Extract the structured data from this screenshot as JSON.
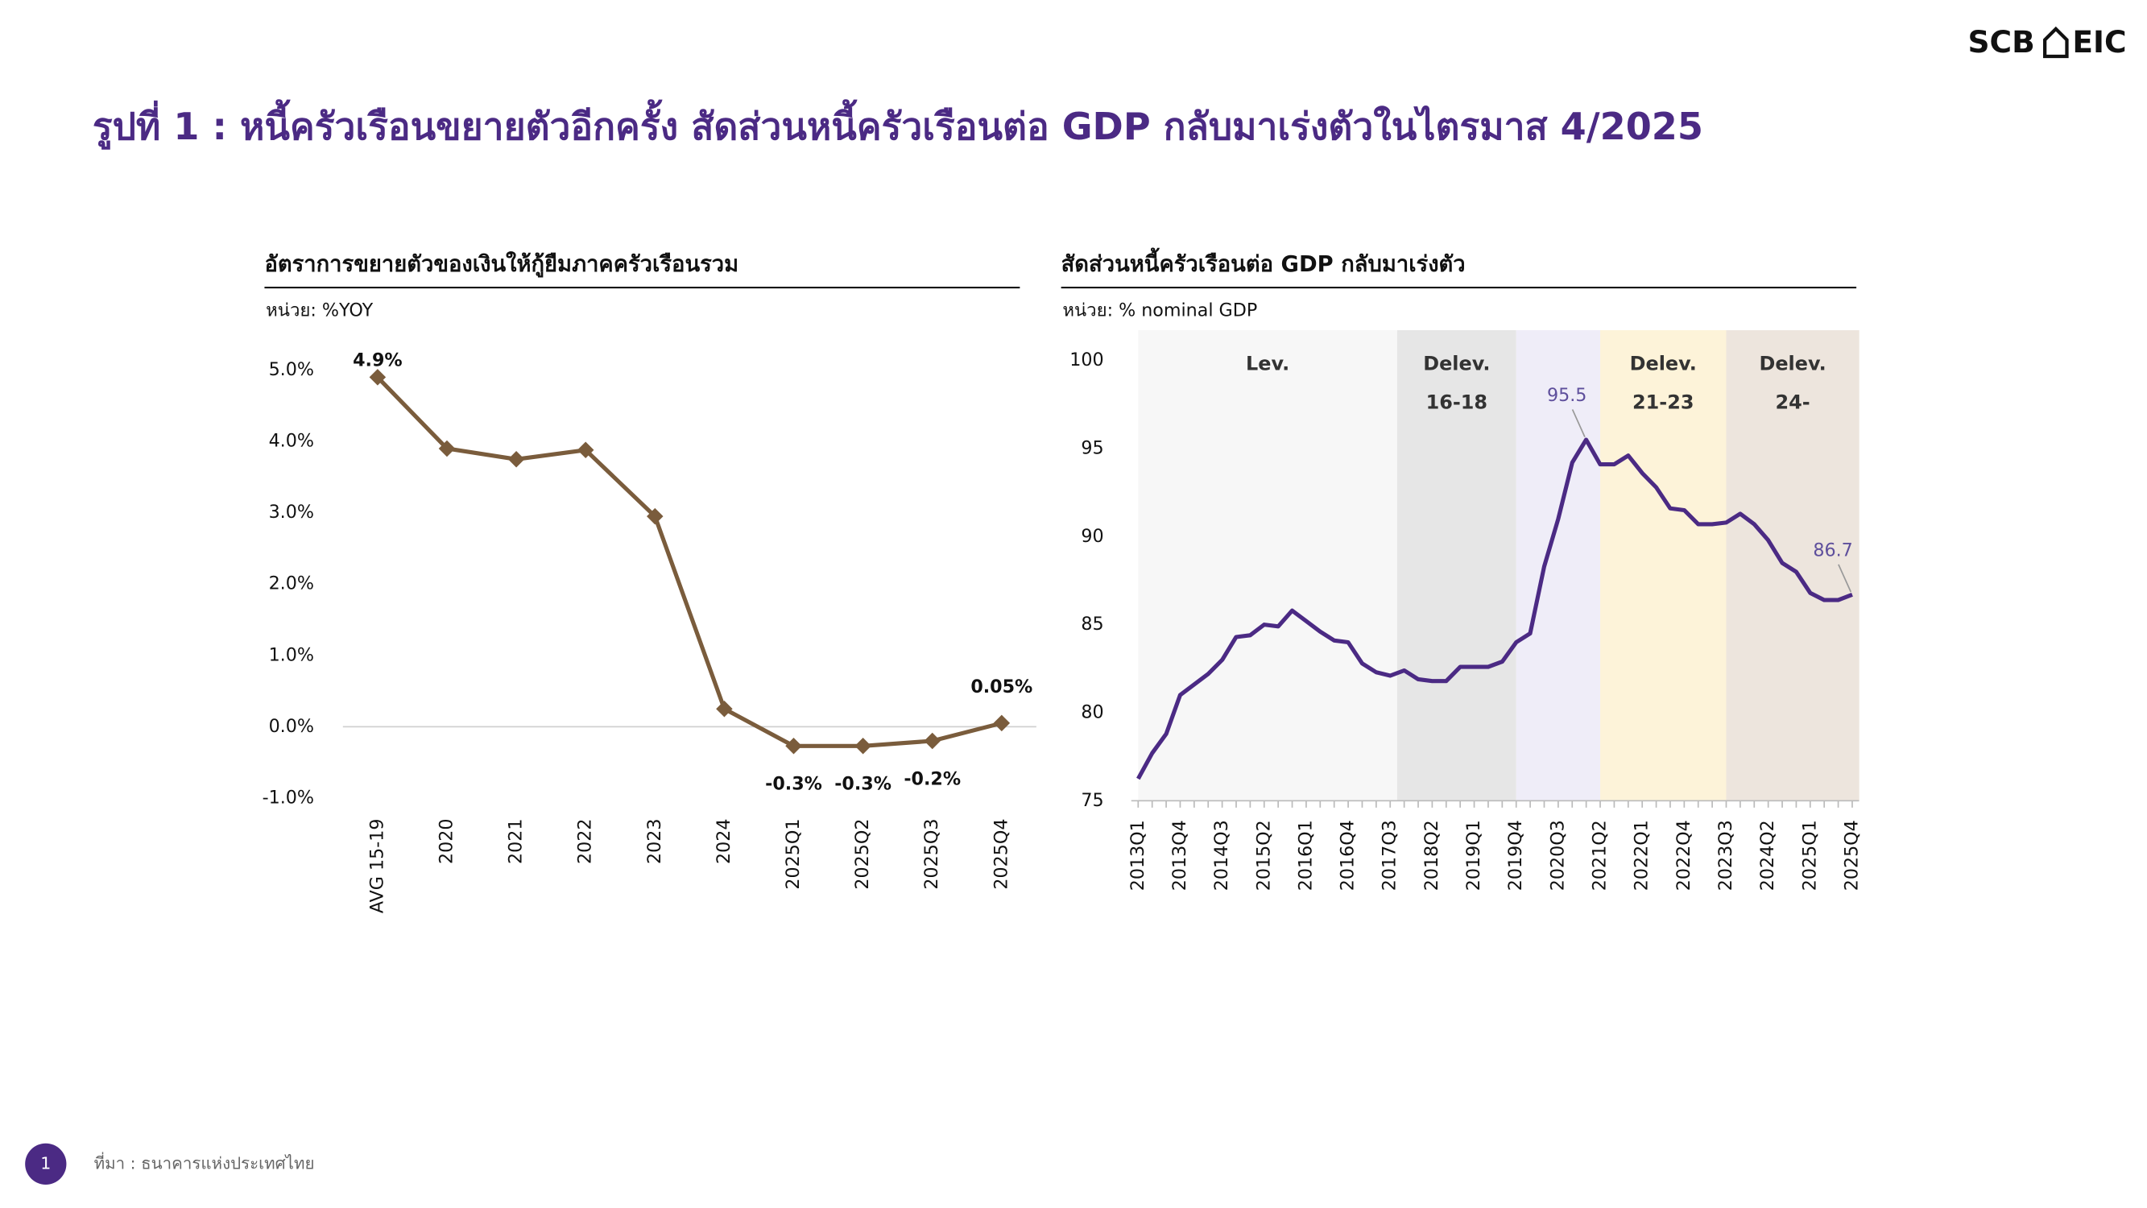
{
  "header": {
    "title": "รูปที่ 1 : หนี้ครัวเรือนขยายตัวอีกครั้ง สัดส่วนหนี้ครัวเรือนต่อ GDP กลับมาเร่งตัวในไตรมาส 4/2025",
    "logo": [
      "SCB",
      "EIC"
    ]
  },
  "chart_data": [
    {
      "type": "line",
      "title": "อัตราการขยายตัวของเงินให้กู้ยืมภาคครัวเรือนรวม",
      "unit_label": "หน่วย: %YOY",
      "categories": [
        "AVG 15-19",
        "2020",
        "2021",
        "2022",
        "2023",
        "2024",
        "2025Q1",
        "2025Q2",
        "2025Q3",
        "2025Q4"
      ],
      "values": [
        4.9,
        3.9,
        3.75,
        3.88,
        2.95,
        0.25,
        -0.27,
        -0.27,
        -0.2,
        0.05
      ],
      "value_labels": [
        "4.9%",
        null,
        null,
        null,
        null,
        null,
        "-0.3%",
        "-0.3%",
        "-0.2%",
        "0.05%"
      ],
      "color": "#7a5c3c",
      "ylim": [
        -1,
        5
      ],
      "yticks": [
        {
          "value": -1,
          "label": "-1.0%"
        },
        {
          "value": 0,
          "label": "0.0%"
        },
        {
          "value": 1,
          "label": "1.0%"
        },
        {
          "value": 2,
          "label": "2.0%"
        },
        {
          "value": 3,
          "label": "3.0%"
        },
        {
          "value": 4,
          "label": "4.0%"
        },
        {
          "value": 5,
          "label": "5.0%"
        }
      ],
      "zero_line": true
    },
    {
      "type": "line",
      "title": "สัดส่วนหนี้ครัวเรือนต่อ GDP กลับมาเร่งตัว",
      "unit_label": "หน่วย: % nominal GDP",
      "categories": [
        "2013Q1",
        null,
        null,
        "2013Q4",
        null,
        null,
        "2014Q3",
        null,
        null,
        "2015Q2",
        null,
        null,
        "2016Q1",
        null,
        null,
        "2016Q4",
        null,
        null,
        "2017Q3",
        null,
        null,
        "2018Q2",
        null,
        null,
        "2019Q1",
        null,
        null,
        "2019Q4",
        null,
        null,
        "2020Q3",
        null,
        null,
        "2021Q2",
        null,
        null,
        "2022Q1",
        null,
        null,
        "2022Q4",
        null,
        null,
        "2023Q3",
        null,
        null,
        "2024Q2",
        null,
        null,
        "2025Q1",
        null,
        null,
        "2025Q4"
      ],
      "values": [
        76.25,
        77.7,
        78.8,
        81.0,
        81.6,
        82.2,
        83.0,
        84.3,
        84.4,
        85.0,
        84.9,
        85.8,
        85.2,
        84.6,
        84.1,
        84.0,
        82.8,
        82.3,
        82.1,
        82.4,
        81.9,
        81.8,
        81.8,
        82.6,
        82.6,
        82.6,
        82.9,
        84.0,
        84.5,
        88.3,
        91.0,
        94.2,
        95.5,
        94.1,
        94.1,
        94.6,
        93.6,
        92.8,
        91.6,
        91.5,
        90.7,
        90.7,
        90.8,
        91.3,
        90.7,
        89.8,
        88.5,
        88.0,
        86.8,
        86.4,
        86.4,
        86.7
      ],
      "value_labels": [
        null,
        null,
        null,
        null,
        null,
        null,
        null,
        null,
        null,
        null,
        null,
        null,
        null,
        null,
        null,
        null,
        null,
        null,
        null,
        null,
        null,
        null,
        null,
        null,
        null,
        null,
        null,
        null,
        null,
        null,
        null,
        null,
        "95.5",
        null,
        null,
        null,
        null,
        null,
        null,
        null,
        null,
        null,
        null,
        null,
        null,
        null,
        null,
        null,
        null,
        null,
        null,
        "86.7"
      ],
      "color": "#4b2a84",
      "label_color": "#5e4f9c",
      "ylim": [
        75,
        100
      ],
      "yticks": [
        75,
        80,
        85,
        90,
        95,
        100
      ],
      "periods": [
        {
          "label": [
            "Lev."
          ],
          "start": 0,
          "end": 18.5,
          "color": "#f7f7f7"
        },
        {
          "label": [
            "Delev.",
            "16-18"
          ],
          "start": 18.5,
          "end": 27,
          "color": "#e6e6e6"
        },
        {
          "start": 27,
          "end": 33,
          "color": "#efedf8"
        },
        {
          "label": [
            "Delev.",
            "21-23"
          ],
          "start": 33,
          "end": 42,
          "color": "#fdf3d9"
        },
        {
          "label": [
            "Delev.",
            "24-"
          ],
          "start": 42,
          "end": 51.5,
          "color": "#ede5dd"
        }
      ]
    }
  ],
  "footer": {
    "page": "1",
    "source": "ที่มา : ธนาคารแห่งประเทศไทย"
  }
}
